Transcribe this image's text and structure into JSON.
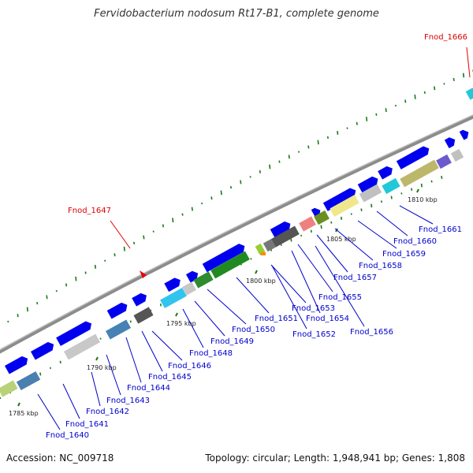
{
  "title": "Fervidobacterium nodosum Rt17-B1, complete genome",
  "accession_label": "Accession: NC_009718",
  "summary_label": "Topology: circular; Length: 1,948,941 bp; Genes: 1,808",
  "kbp_ticks": [
    "1785 kbp",
    "1790 kbp",
    "1795 kbp",
    "1800 kbp",
    "1805 kbp",
    "1810 kbp"
  ],
  "gene_labels": [
    {
      "text": "Fnod_1640",
      "color": "#0000cc"
    },
    {
      "text": "Fnod_1641",
      "color": "#0000cc"
    },
    {
      "text": "Fnod_1642",
      "color": "#0000cc"
    },
    {
      "text": "Fnod_1643",
      "color": "#0000cc"
    },
    {
      "text": "Fnod_1644",
      "color": "#0000cc"
    },
    {
      "text": "Fnod_1645",
      "color": "#0000cc"
    },
    {
      "text": "Fnod_1646",
      "color": "#0000cc"
    },
    {
      "text": "Fnod_1647",
      "color": "#dd0000"
    },
    {
      "text": "Fnod_1648",
      "color": "#0000cc"
    },
    {
      "text": "Fnod_1649",
      "color": "#0000cc"
    },
    {
      "text": "Fnod_1650",
      "color": "#0000cc"
    },
    {
      "text": "Fnod_1651",
      "color": "#0000cc"
    },
    {
      "text": "Fnod_1652",
      "color": "#0000cc"
    },
    {
      "text": "Fnod_1653",
      "color": "#0000cc"
    },
    {
      "text": "Fnod_1654",
      "color": "#0000cc"
    },
    {
      "text": "Fnod_1655",
      "color": "#0000cc"
    },
    {
      "text": "Fnod_1656",
      "color": "#0000cc"
    },
    {
      "text": "Fnod_1657",
      "color": "#0000cc"
    },
    {
      "text": "Fnod_1658",
      "color": "#0000cc"
    },
    {
      "text": "Fnod_1659",
      "color": "#0000cc"
    },
    {
      "text": "Fnod_1660",
      "color": "#0000cc"
    },
    {
      "text": "Fnod_1661",
      "color": "#0000cc"
    },
    {
      "text": "Fnod_1666",
      "color": "#dd0000"
    }
  ],
  "colors": {
    "backbone": "#8c8c8c",
    "gene_default": "#0000ee",
    "gc_tick": "#1a7a1a",
    "leader_blue": "#0000cc",
    "leader_red": "#dd0000"
  }
}
